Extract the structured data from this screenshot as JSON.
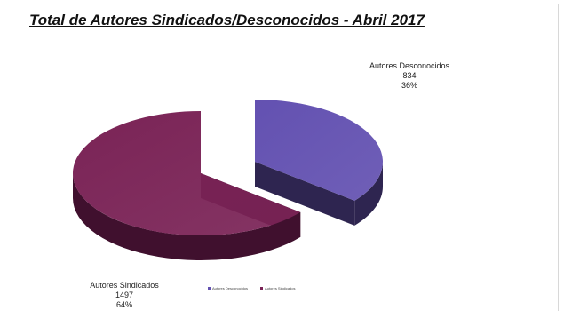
{
  "title": "Total de Autores Sindicados/Desconocidos - Abril 2017",
  "chart_data": {
    "type": "pie",
    "style": "3d-exploded",
    "title": "Total de Autores Sindicados/Desconocidos - Abril 2017",
    "categories": [
      "Autores Desconocidos",
      "Autores Sindicados"
    ],
    "values": [
      834,
      1497
    ],
    "percent_labels": [
      "36%",
      "64%"
    ],
    "colors": [
      "#6351b1",
      "#7a2356"
    ],
    "side_colors": [
      "#2e2550",
      "#40102e"
    ],
    "legend_placement": "bottom",
    "data_labels": [
      {
        "name": "Autores Desconocidos",
        "value": "834",
        "percent": "36%"
      },
      {
        "name": "Autores Sindicados",
        "value": "1497",
        "percent": "64%"
      }
    ]
  }
}
